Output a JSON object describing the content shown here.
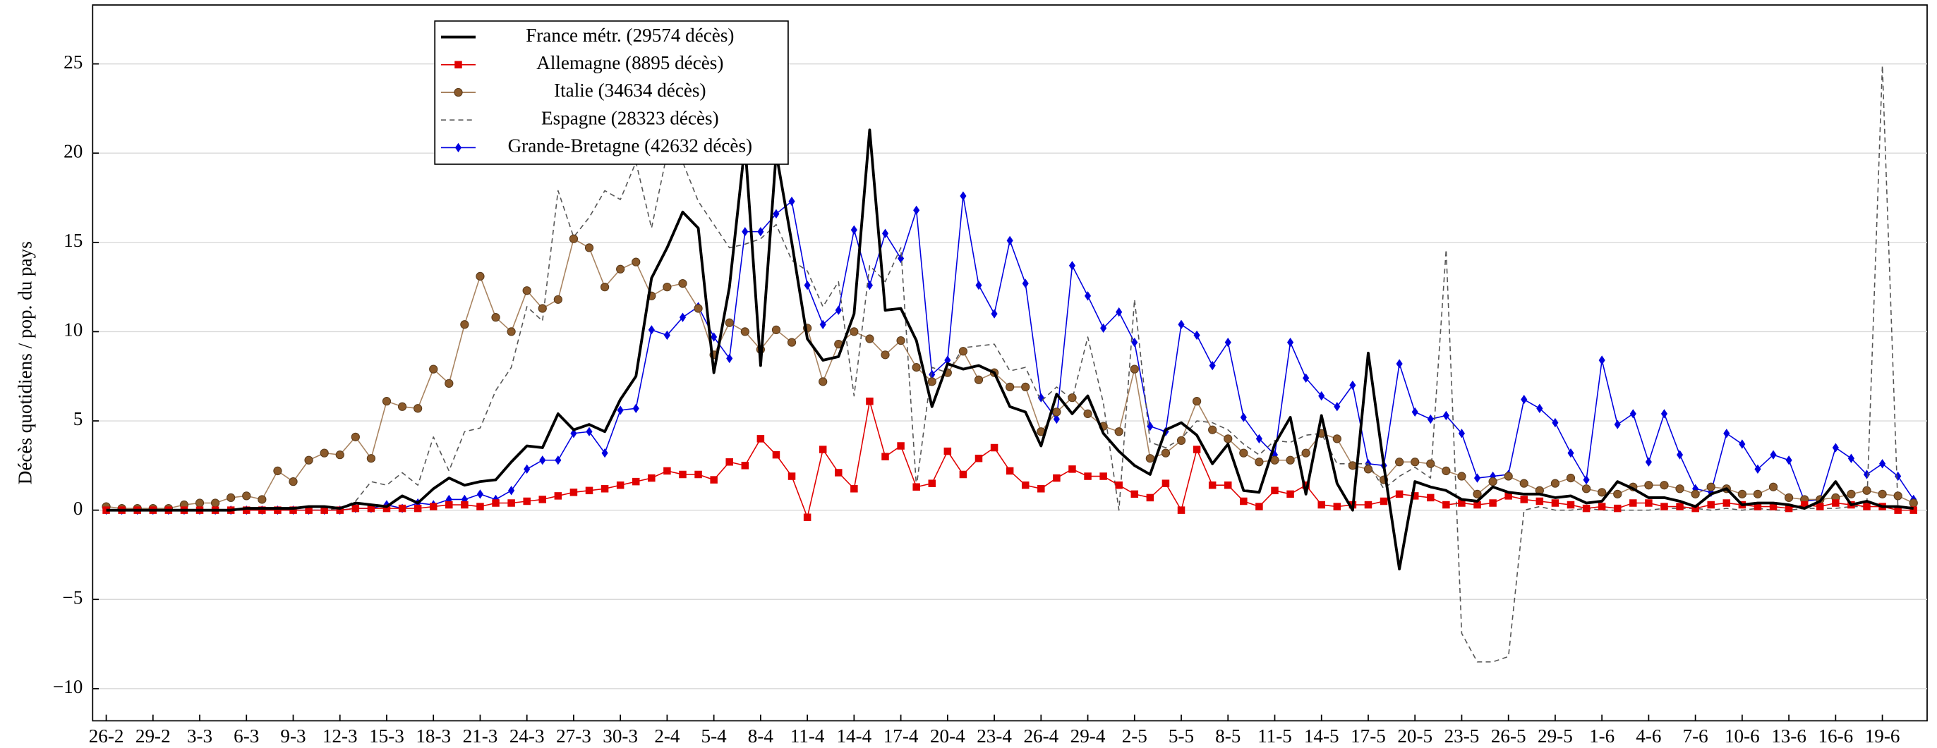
{
  "chart_data": {
    "type": "line",
    "ylabel": "Décès quotidiens / pop. du pays",
    "categories": [
      "26-2",
      null,
      null,
      "29-2",
      null,
      null,
      "3-3",
      null,
      null,
      "6-3",
      null,
      null,
      "9-3",
      null,
      null,
      "12-3",
      null,
      null,
      "15-3",
      null,
      null,
      "18-3",
      null,
      null,
      "21-3",
      null,
      null,
      "24-3",
      null,
      null,
      "27-3",
      null,
      null,
      "30-3",
      null,
      null,
      "2-4",
      null,
      null,
      "5-4",
      null,
      null,
      "8-4",
      null,
      null,
      "11-4",
      null,
      null,
      "14-4",
      null,
      null,
      "17-4",
      null,
      null,
      "20-4",
      null,
      null,
      "23-4",
      null,
      null,
      "26-4",
      null,
      null,
      "29-4",
      null,
      null,
      "2-5",
      null,
      null,
      "5-5",
      null,
      null,
      "8-5",
      null,
      null,
      "11-5",
      null,
      null,
      "14-5",
      null,
      null,
      "17-5",
      null,
      null,
      "20-5",
      null,
      null,
      "23-5",
      null,
      null,
      "26-5",
      null,
      null,
      "29-5",
      null,
      null,
      "1-6",
      null,
      null,
      "4-6",
      null,
      null,
      "7-6",
      null,
      null,
      "10-6",
      null,
      null,
      "13-6",
      null,
      null,
      "16-6",
      null,
      null,
      "19-6",
      null,
      null
    ],
    "ylim": [
      -11.8,
      28.3
    ],
    "yticks": [
      {
        "value": -10,
        "label": "−10"
      },
      {
        "value": -5,
        "label": "−5"
      },
      0,
      5,
      10,
      15,
      20,
      25
    ],
    "grid": true,
    "legend": "top-left",
    "series": [
      {
        "name": "France métr. (29574 décès)",
        "color": "#000000",
        "marker": "none",
        "dashed": false,
        "values": [
          0,
          0,
          0,
          0,
          0,
          0,
          0,
          0,
          0,
          0.1,
          0.1,
          0.1,
          0.1,
          0.2,
          0.2,
          0.1,
          0.4,
          0.3,
          0.2,
          0.8,
          0.4,
          1.2,
          1.8,
          1.4,
          1.6,
          1.7,
          2.7,
          3.6,
          3.5,
          5.4,
          4.5,
          4.8,
          4.4,
          6.2,
          7.5,
          13.0,
          14.7,
          16.7,
          15.8,
          7.7,
          12.5,
          20.5,
          8.1,
          20.0,
          15.0,
          9.6,
          8.4,
          8.6,
          11.0,
          21.3,
          11.2,
          11.3,
          9.5,
          5.8,
          8.2,
          7.9,
          8.1,
          7.7,
          5.8,
          5.5,
          3.6,
          6.5,
          5.4,
          6.4,
          4.3,
          3.3,
          2.5,
          2.0,
          4.5,
          4.9,
          4.2,
          2.6,
          3.7,
          1.1,
          1.0,
          3.7,
          5.2,
          0.9,
          5.3,
          1.5,
          0.0,
          8.8,
          2.5,
          -3.3,
          1.6,
          1.3,
          1.1,
          0.6,
          0.5,
          1.3,
          1.0,
          0.9,
          0.9,
          0.7,
          0.8,
          0.4,
          0.5,
          1.6,
          1.2,
          0.7,
          0.7,
          0.5,
          0.2,
          0.9,
          1.2,
          0.3,
          0.4,
          0.4,
          0.3,
          0.1,
          0.5,
          1.6,
          0.3,
          0.5,
          0.2,
          0.2,
          0.1
        ]
      },
      {
        "name": "Allemagne (8895 décès)",
        "color": "#e00000",
        "marker": "square",
        "dashed": false,
        "values": [
          0,
          0,
          0,
          0,
          0,
          0,
          0,
          0,
          0,
          0,
          0,
          0,
          0,
          0,
          0,
          0,
          0.1,
          0.1,
          0.1,
          0.1,
          0.1,
          0.2,
          0.3,
          0.3,
          0.2,
          0.4,
          0.4,
          0.5,
          0.6,
          0.8,
          1.0,
          1.1,
          1.2,
          1.4,
          1.6,
          1.8,
          2.2,
          2.0,
          2.0,
          1.7,
          2.7,
          2.5,
          4.0,
          3.1,
          1.9,
          -0.4,
          3.4,
          2.1,
          1.2,
          6.1,
          3.0,
          3.6,
          1.3,
          1.5,
          3.3,
          2.0,
          2.9,
          3.5,
          2.2,
          1.4,
          1.2,
          1.8,
          2.3,
          1.9,
          1.9,
          1.4,
          0.9,
          0.7,
          1.5,
          0.0,
          3.4,
          1.4,
          1.4,
          0.5,
          0.2,
          1.1,
          0.9,
          1.4,
          0.3,
          0.2,
          0.3,
          0.3,
          0.5,
          0.9,
          0.8,
          0.7,
          0.3,
          0.4,
          0.3,
          0.4,
          0.8,
          0.6,
          0.5,
          0.4,
          0.3,
          0.1,
          0.2,
          0.1,
          0.4,
          0.4,
          0.2,
          0.2,
          0.1,
          0.3,
          0.4,
          0.3,
          0.2,
          0.2,
          0.1,
          0.3,
          0.2,
          0.4,
          0.3,
          0.2,
          0.2,
          0.0,
          0.0
        ]
      },
      {
        "name": "Italie (34634 décès)",
        "color": "#8b5a2b",
        "marker": "circle",
        "dashed": false,
        "values": [
          0.2,
          0.1,
          0.1,
          0.1,
          0.1,
          0.3,
          0.4,
          0.4,
          0.7,
          0.8,
          0.6,
          2.2,
          1.6,
          2.8,
          3.2,
          3.1,
          4.1,
          2.9,
          6.1,
          5.8,
          5.7,
          7.9,
          7.1,
          10.4,
          13.1,
          10.8,
          10.0,
          12.3,
          11.3,
          11.8,
          15.2,
          14.7,
          12.5,
          13.5,
          13.9,
          12.0,
          12.5,
          12.7,
          11.3,
          8.7,
          10.5,
          10.0,
          9.0,
          10.1,
          9.4,
          10.2,
          7.2,
          9.3,
          10.0,
          9.6,
          8.7,
          9.5,
          8.0,
          7.2,
          7.7,
          8.9,
          7.3,
          7.7,
          6.9,
          6.9,
          4.4,
          5.5,
          6.3,
          5.4,
          4.7,
          4.4,
          7.9,
          2.9,
          3.2,
          3.9,
          6.1,
          4.5,
          4.0,
          3.2,
          2.7,
          2.8,
          2.8,
          3.2,
          4.3,
          4.0,
          2.5,
          2.3,
          1.7,
          2.7,
          2.7,
          2.6,
          2.2,
          1.9,
          0.9,
          1.6,
          1.9,
          1.5,
          1.1,
          1.5,
          1.8,
          1.2,
          1.0,
          0.9,
          1.3,
          1.4,
          1.4,
          1.2,
          0.9,
          1.3,
          1.2,
          0.9,
          0.9,
          1.3,
          0.7,
          0.6,
          0.6,
          0.7,
          0.9,
          1.1,
          0.9,
          0.8,
          0.4
        ]
      },
      {
        "name": "Espagne (28323 décès)",
        "color": "#555555",
        "marker": "none",
        "dashed": true,
        "values": [
          0,
          0,
          0,
          0,
          0,
          0,
          0,
          0,
          0,
          0,
          0,
          0,
          0,
          0,
          0,
          0.1,
          0.5,
          1.6,
          1.4,
          2.1,
          1.4,
          4.1,
          2.2,
          4.4,
          4.6,
          6.7,
          8.0,
          11.4,
          10.6,
          17.9,
          15.3,
          16.4,
          17.9,
          17.4,
          19.5,
          15.8,
          20.0,
          19.5,
          17.3,
          16.0,
          14.7,
          14.9,
          15.2,
          16.0,
          14.0,
          13.4,
          11.4,
          12.8,
          6.4,
          13.7,
          12.8,
          14.7,
          1.3,
          8.0,
          7.7,
          9.1,
          9.2,
          9.3,
          7.8,
          8.0,
          6.1,
          6.9,
          6.2,
          9.7,
          6.0,
          0.0,
          11.8,
          3.8,
          3.5,
          4.0,
          5.0,
          4.9,
          4.5,
          3.7,
          3.1,
          3.9,
          3.8,
          4.2,
          4.3,
          2.6,
          2.6,
          2.6,
          1.2,
          1.9,
          2.4,
          1.8,
          14.6,
          -6.9,
          -8.5,
          -8.5,
          -8.2,
          0.0,
          0.2,
          0.0,
          0.0,
          0.1,
          0.0,
          0.0,
          0.0,
          0.0,
          0.1,
          0.1,
          0.1,
          0.0,
          0.1,
          0.0,
          0.1,
          0.0,
          0.0,
          0.1,
          0.1,
          0.1,
          0.2,
          0.2,
          24.9,
          0.1,
          0.2
        ]
      },
      {
        "name": "Grande-Bretagne (42632 décès)",
        "color": "#0000e0",
        "marker": "diamond",
        "dashed": false,
        "values": [
          0,
          0,
          0,
          0,
          0,
          0,
          0,
          0,
          0,
          0,
          0,
          0,
          0,
          0,
          0,
          0.0,
          0.1,
          0.1,
          0.3,
          0.1,
          0.4,
          0.3,
          0.6,
          0.6,
          0.9,
          0.6,
          1.1,
          2.3,
          2.8,
          2.8,
          4.3,
          4.4,
          3.2,
          5.6,
          5.7,
          10.1,
          9.8,
          10.8,
          11.4,
          9.7,
          8.5,
          15.6,
          15.6,
          16.6,
          17.3,
          12.6,
          10.4,
          11.2,
          15.7,
          12.6,
          15.5,
          14.1,
          16.8,
          7.6,
          8.4,
          17.6,
          12.6,
          11.0,
          15.1,
          12.7,
          6.3,
          5.1,
          13.7,
          12.0,
          10.2,
          11.1,
          9.4,
          4.7,
          4.4,
          10.4,
          9.8,
          8.1,
          9.4,
          5.2,
          4.0,
          3.1,
          9.4,
          7.4,
          6.4,
          5.8,
          7.0,
          2.6,
          2.5,
          8.2,
          5.5,
          5.1,
          5.3,
          4.3,
          1.8,
          1.9,
          2.0,
          6.2,
          5.7,
          4.9,
          3.2,
          1.7,
          8.4,
          4.8,
          5.4,
          2.7,
          5.4,
          3.1,
          1.2,
          1.0,
          4.3,
          3.7,
          2.3,
          3.1,
          2.8,
          0.5,
          0.6,
          3.5,
          2.9,
          2.0,
          2.6,
          1.9,
          0.6
        ]
      }
    ]
  }
}
